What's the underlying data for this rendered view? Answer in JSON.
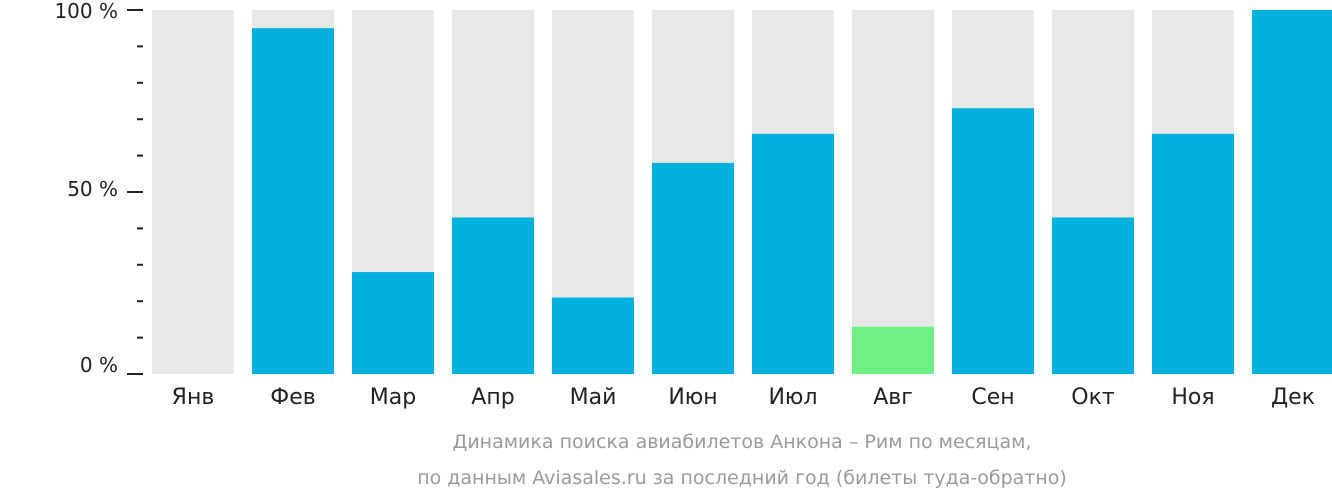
{
  "chart_data": {
    "type": "bar",
    "categories": [
      "Янв",
      "Фев",
      "Мар",
      "Апр",
      "Май",
      "Июн",
      "Июл",
      "Авг",
      "Сен",
      "Окт",
      "Ноя",
      "Дек"
    ],
    "values": [
      0,
      95,
      28,
      43,
      21,
      58,
      66,
      13,
      73,
      43,
      66,
      100
    ],
    "ylim": [
      0,
      100
    ],
    "yticks": [
      "0 %",
      "50 %",
      "100 %"
    ],
    "title": "Динамика поиска авиабилетов Анкона – Рим по месяцам,",
    "subtitle": "по данным Aviasales.ru за последний год (билеты туда-обратно)",
    "colors": {
      "bar": "#00b0dd",
      "highlight": "#6ff085",
      "background_bar": "#e8e8e8",
      "axis": "#222222",
      "caption": "#9a9a9a"
    },
    "highlight_index": 7
  }
}
